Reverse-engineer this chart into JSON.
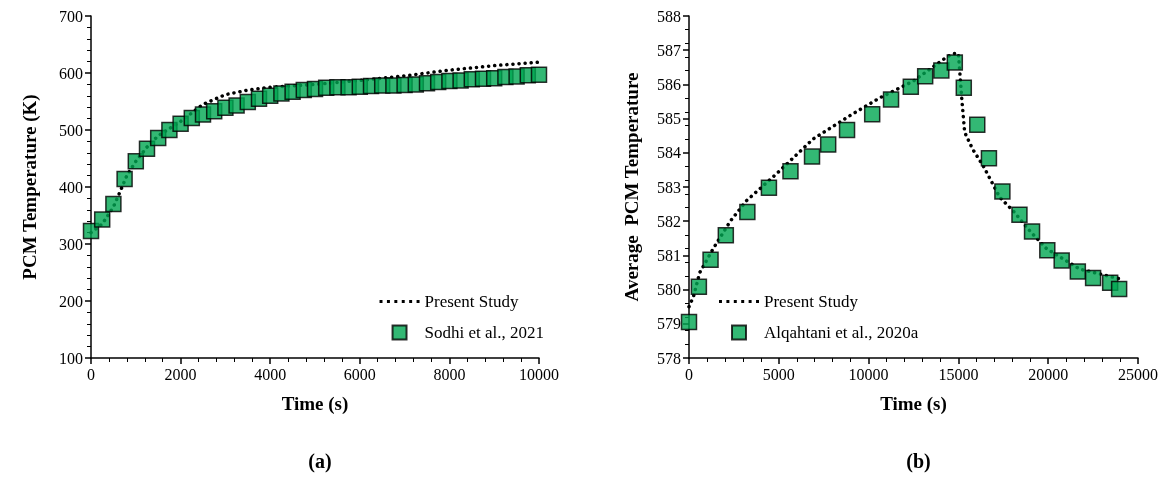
{
  "chart_data": [
    {
      "type": "line",
      "title": "(a)",
      "xlabel": "Time (s)",
      "ylabel": "PCM Temperature (K)",
      "xlim": [
        0,
        10000
      ],
      "xticks": [
        0,
        2000,
        4000,
        6000,
        8000,
        10000
      ],
      "ylim": [
        100,
        700
      ],
      "yticks": [
        100,
        200,
        300,
        400,
        500,
        600,
        700
      ],
      "grid": false,
      "legend": "bottom right",
      "series": [
        {
          "name": "Present Study",
          "color": "#000000",
          "line_style": "dotted",
          "marker": "none",
          "x": [
            0,
            250,
            500,
            650,
            800,
            1000,
            1250,
            1500,
            2000,
            2500,
            3000,
            3500,
            4000,
            5000,
            6000,
            7000,
            8000,
            9000,
            10000
          ],
          "values": [
            320,
            335,
            365,
            392,
            420,
            445,
            470,
            490,
            515,
            545,
            562,
            570,
            575,
            580,
            587,
            595,
            605,
            613,
            619
          ]
        },
        {
          "name": "Sodhi et al., 2021",
          "type": "scatter",
          "color": "#00a651",
          "marker": "square",
          "x": [
            0,
            250,
            500,
            750,
            1000,
            1250,
            1500,
            1750,
            2000,
            2250,
            2500,
            2750,
            3000,
            3250,
            3500,
            3750,
            4000,
            4250,
            4500,
            4750,
            5000,
            5250,
            5500,
            5750,
            6000,
            6250,
            6500,
            6750,
            7000,
            7250,
            7500,
            7750,
            8000,
            8250,
            8500,
            8750,
            9000,
            9250,
            9500,
            9750,
            10000
          ],
          "values": [
            323,
            343,
            370,
            414,
            445,
            467,
            486,
            500,
            511,
            521,
            527,
            533,
            539,
            543,
            549,
            555,
            560,
            564,
            567,
            570,
            572,
            574,
            575,
            575,
            576,
            577,
            578,
            578,
            579,
            580,
            582,
            584,
            586,
            587,
            589,
            590,
            591,
            593,
            594,
            596,
            597
          ]
        }
      ]
    },
    {
      "type": "line",
      "title": "(b)",
      "xlabel": "Time (s)",
      "ylabel": "Average  PCM Temperature",
      "xlim": [
        0,
        25000
      ],
      "xticks": [
        0,
        5000,
        10000,
        15000,
        20000,
        25000
      ],
      "ylim": [
        578,
        588
      ],
      "yticks": [
        578,
        579,
        580,
        581,
        582,
        583,
        584,
        585,
        586,
        587,
        588
      ],
      "grid": false,
      "legend": "bottom left",
      "series": [
        {
          "name": "Present Study",
          "color": "#000000",
          "line_style": "dotted",
          "marker": "none",
          "x": [
            0,
            250,
            600,
            1350,
            2300,
            3200,
            4900,
            6900,
            9000,
            10600,
            12500,
            14350,
            14700,
            15000,
            15200,
            15350,
            15800,
            16400,
            17300,
            18050,
            19000,
            19900,
            21750,
            24100
          ],
          "values": [
            579.5,
            579.8,
            580.5,
            581.2,
            582.0,
            582.6,
            583.4,
            584.4,
            585.1,
            585.6,
            586.1,
            586.8,
            586.9,
            586.9,
            585.5,
            584.6,
            584.1,
            583.6,
            582.7,
            582.3,
            581.7,
            581.2,
            580.6,
            580.3
          ]
        },
        {
          "name": "Alqahtani et al., 2020a",
          "type": "scatter",
          "color": "#00a651",
          "marker": "square",
          "x": [
            0,
            550,
            1200,
            2050,
            3250,
            4450,
            5650,
            6850,
            7750,
            8800,
            10200,
            11250,
            12350,
            13150,
            14050,
            14800,
            15300,
            16050,
            16700,
            17450,
            18400,
            19100,
            19950,
            20750,
            21650,
            22500,
            23450,
            23950
          ],
          "values": [
            579.05,
            580.08,
            580.87,
            581.59,
            582.27,
            582.98,
            583.46,
            583.89,
            584.24,
            584.67,
            585.13,
            585.56,
            585.93,
            586.24,
            586.41,
            586.64,
            585.9,
            584.82,
            583.84,
            582.87,
            582.19,
            581.7,
            581.15,
            580.85,
            580.53,
            580.34,
            580.2,
            580.02
          ]
        }
      ]
    }
  ]
}
